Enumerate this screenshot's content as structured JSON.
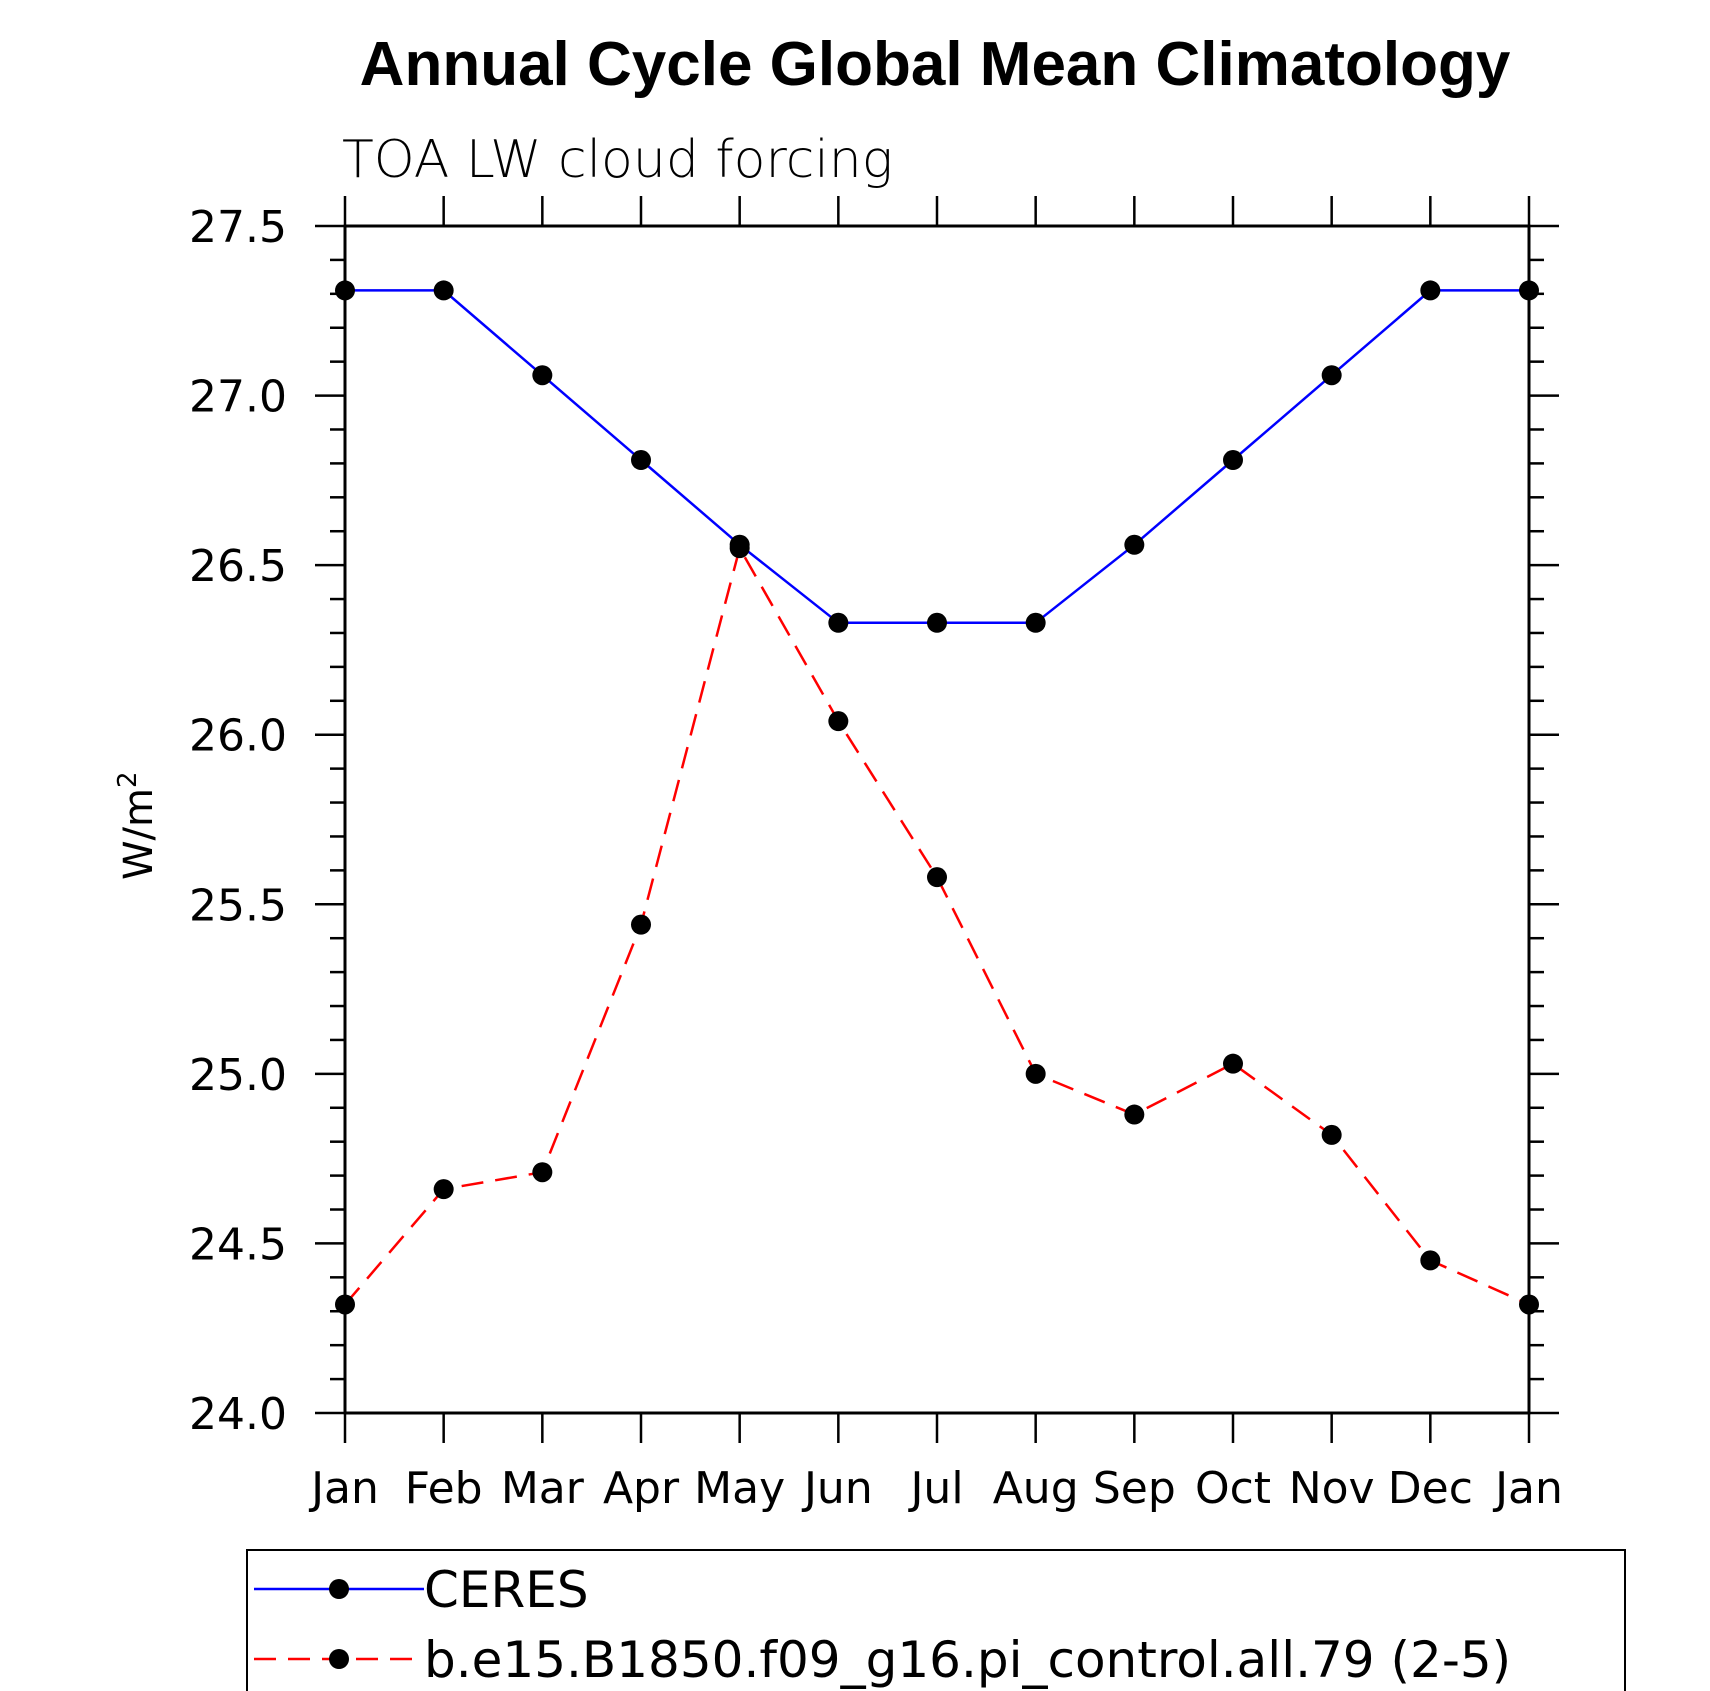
{
  "chart_data": {
    "type": "line",
    "title": "Annual Cycle Global Mean Climatology",
    "subtitle": "TOA LW cloud forcing",
    "ylabel": "W/m",
    "ylabel_superscript": "2",
    "ylim": [
      24.0,
      27.5
    ],
    "yticks": [
      "24.0",
      "24.5",
      "25.0",
      "25.5",
      "26.0",
      "26.5",
      "27.0",
      "27.5"
    ],
    "categories": [
      "Jan",
      "Feb",
      "Mar",
      "Apr",
      "May",
      "Jun",
      "Jul",
      "Aug",
      "Sep",
      "Oct",
      "Nov",
      "Dec",
      "Jan"
    ],
    "grid": false,
    "legend_position": "bottom",
    "series": [
      {
        "name": "CERES",
        "color": "#0000ff",
        "dash": "solid",
        "marker": "filled-circle",
        "values": [
          27.31,
          27.31,
          27.06,
          26.81,
          26.56,
          26.33,
          26.33,
          26.33,
          26.56,
          26.81,
          27.06,
          27.31,
          27.31
        ]
      },
      {
        "name": "b.e15.B1850.f09_g16.pi_control.all.79 (2-5)",
        "color": "#ff0000",
        "dash": "dashed",
        "marker": "filled-circle",
        "values": [
          24.32,
          24.66,
          24.71,
          25.44,
          26.55,
          26.04,
          25.58,
          25.0,
          24.88,
          25.03,
          24.82,
          24.45,
          24.32
        ]
      }
    ]
  }
}
